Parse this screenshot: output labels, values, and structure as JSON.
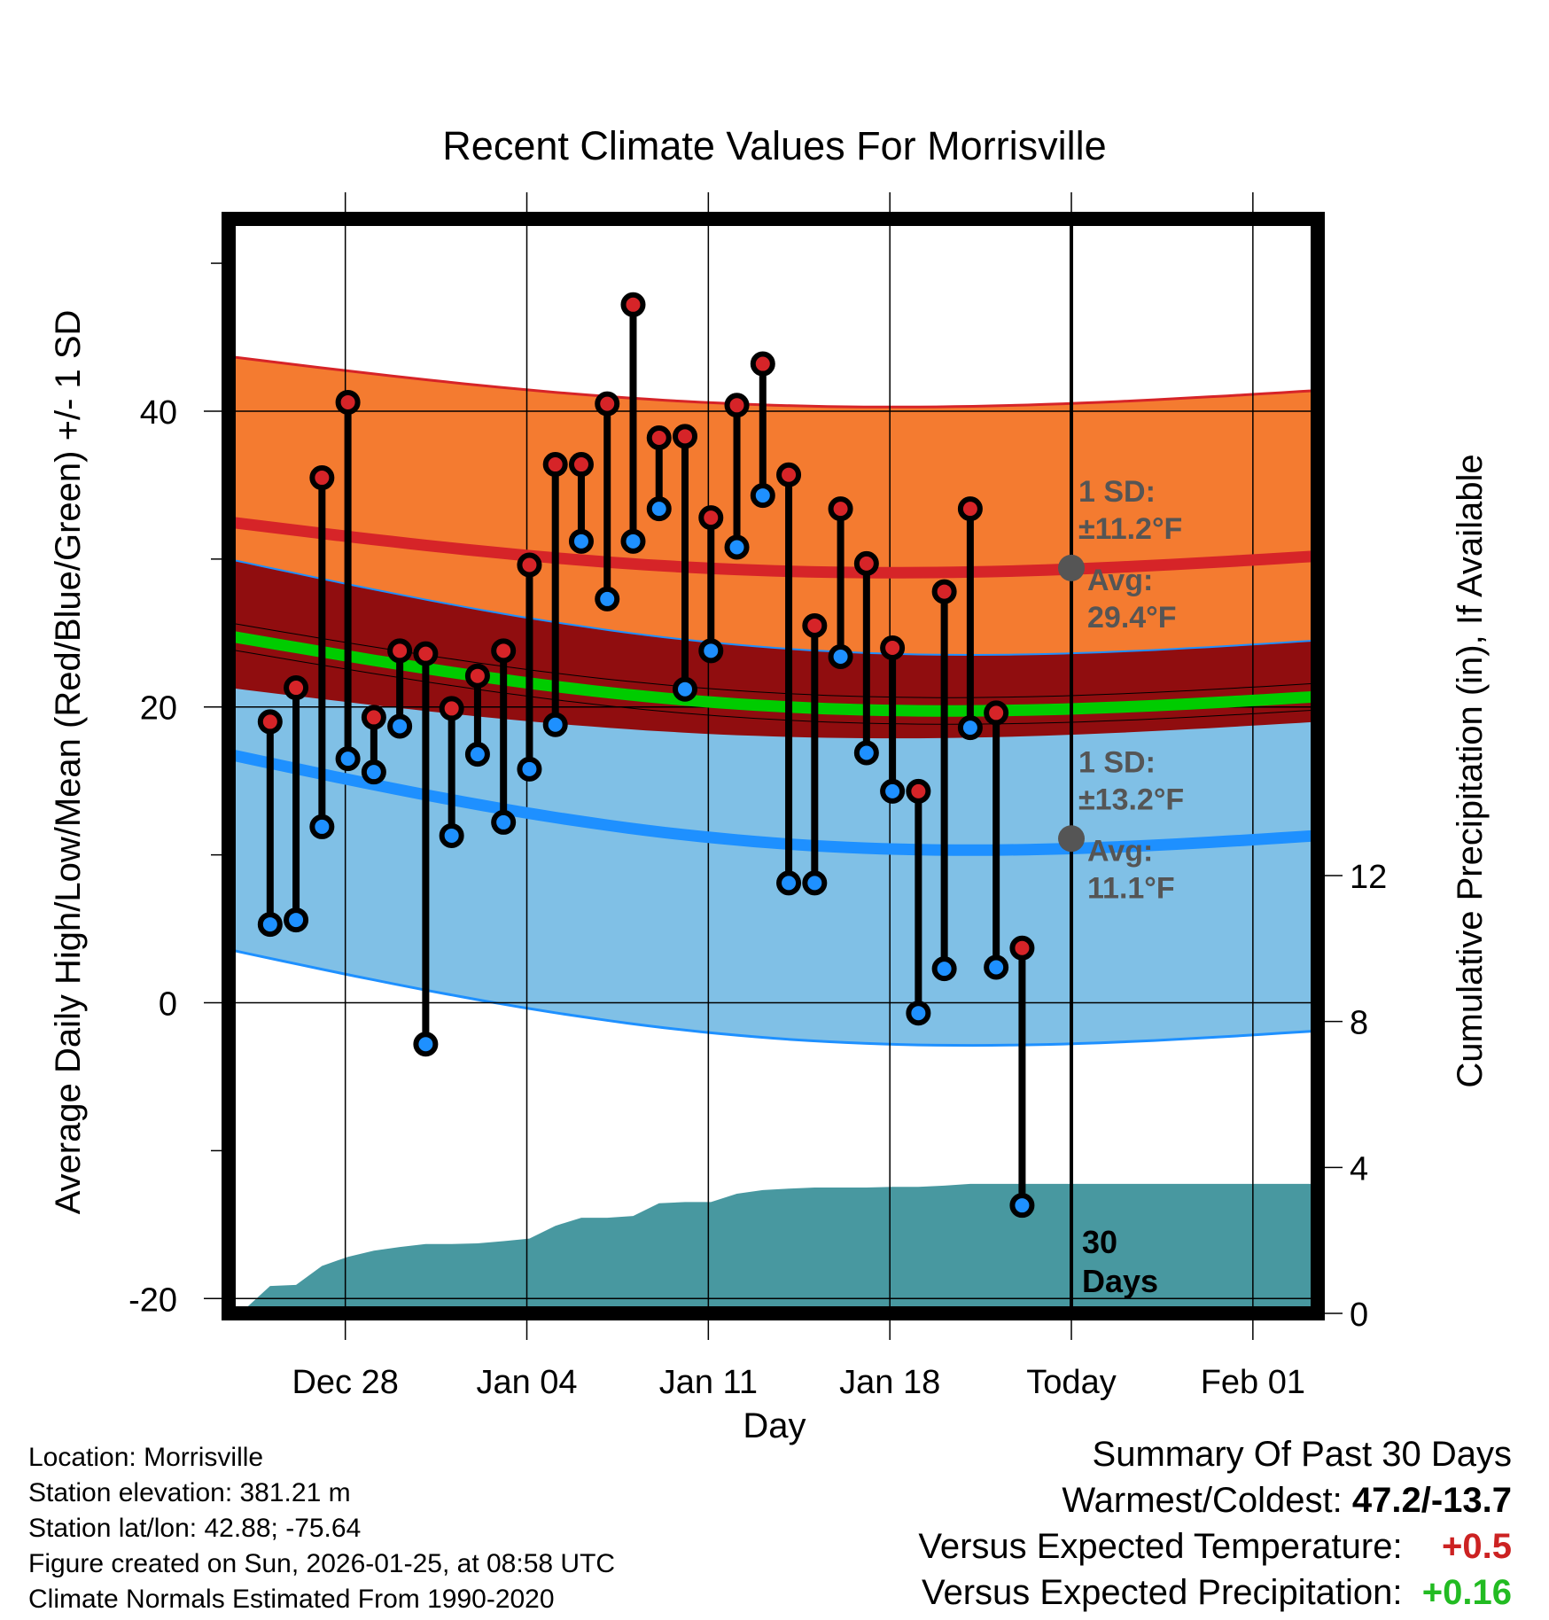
{
  "chart_data": {
    "type": "line",
    "title": "Recent Climate Values For Morrisville",
    "xlabel": "Day",
    "ylabel": "Average Daily High/Low/Mean (Red/Blue/Green) +/- 1 SD",
    "y2label": "Cumulative Precipitation (in), If Available",
    "ylim": [
      -21,
      53
    ],
    "y2lim": [
      0,
      30
    ],
    "xlim": [
      -3.5,
      38.5
    ],
    "yticks": [
      -20,
      0,
      20,
      40
    ],
    "y2ticks": [
      0,
      4,
      8,
      12
    ],
    "xticks": [
      {
        "day": 1,
        "label": "Dec 28"
      },
      {
        "day": 8,
        "label": "Jan 04"
      },
      {
        "day": 15,
        "label": "Jan 11"
      },
      {
        "day": 22,
        "label": "Jan 18"
      },
      {
        "day": 29,
        "label": "Today"
      },
      {
        "day": 36,
        "label": "Feb 01"
      }
    ],
    "today_day": 29,
    "today_label": [
      "30",
      "Days"
    ],
    "normal_high": {
      "start": 32.5,
      "end": 30.2,
      "min": 29.4
    },
    "normal_high_sd": 11.2,
    "normal_low": {
      "start": 16.8,
      "end": 11.3,
      "min": 11.1
    },
    "normal_low_sd": 13.2,
    "normal_mean": {
      "start": 24.8,
      "end": 20.7,
      "min": 20.3
    },
    "annotations": {
      "high_sd": "1 SD:",
      "high_sd_value": "±11.2°F",
      "high_avg": "Avg:",
      "high_avg_value": "29.4°F",
      "low_sd": "1 SD:",
      "low_sd_value": "±13.2°F",
      "low_avg": "Avg:",
      "low_avg_value": "11.1°F"
    },
    "series": [
      {
        "name": "Daily High",
        "values": [
          19.0,
          21.3,
          35.5,
          40.6,
          19.3,
          23.8,
          23.6,
          19.9,
          22.1,
          23.8,
          29.6,
          36.4,
          36.4,
          40.5,
          47.2,
          38.2,
          38.3,
          32.8,
          40.4,
          43.2,
          35.7,
          25.5,
          33.4,
          29.7,
          24.0,
          14.3,
          27.8,
          33.4,
          19.6,
          3.7
        ]
      },
      {
        "name": "Daily Low",
        "values": [
          5.3,
          5.6,
          11.9,
          16.5,
          15.6,
          18.7,
          -2.8,
          11.3,
          16.8,
          12.2,
          15.8,
          18.8,
          31.2,
          27.3,
          31.2,
          33.4,
          21.2,
          23.8,
          30.8,
          34.3,
          8.1,
          8.1,
          23.4,
          16.9,
          14.3,
          -0.7,
          2.3,
          18.6,
          2.4,
          -13.7
        ]
      }
    ],
    "precip_cumulative": [
      0.1,
      0.75,
      0.78,
      1.3,
      1.55,
      1.72,
      1.82,
      1.9,
      1.9,
      1.92,
      1.98,
      2.05,
      2.4,
      2.62,
      2.62,
      2.67,
      3.02,
      3.05,
      3.05,
      3.28,
      3.38,
      3.42,
      3.45,
      3.45,
      3.45,
      3.47,
      3.47,
      3.5,
      3.55,
      3.55
    ],
    "precip_final": 3.55
  },
  "station": {
    "location": "Location: Morrisville",
    "elevation": "Station elevation: 381.21 m",
    "latlon": "Station lat/lon: 42.88; -75.64",
    "created": "Figure created on Sun, 2026-01-25, at 08:58 UTC",
    "normals": "Climate Normals Estimated From 1990-2020"
  },
  "summary": {
    "heading": "Summary Of Past 30 Days",
    "extremes_label": "Warmest/Coldest:",
    "extremes_value": "47.2/-13.7",
    "temp_label": "Versus Expected Temperature:",
    "temp_value": "+0.5",
    "precip_label": "Versus Expected Precipitation:",
    "precip_value": "+0.16"
  },
  "colors": {
    "orange": "#f47b30",
    "darkred": "#900d0f",
    "lightblue": "#80c0e6",
    "red_line": "#d62428",
    "blue_line": "#1e90ff",
    "green_line": "#00cc00",
    "precip": "#4898a0",
    "high_dot": "#d62428",
    "low_dot": "#1e90ff",
    "annotation": "#555555"
  }
}
